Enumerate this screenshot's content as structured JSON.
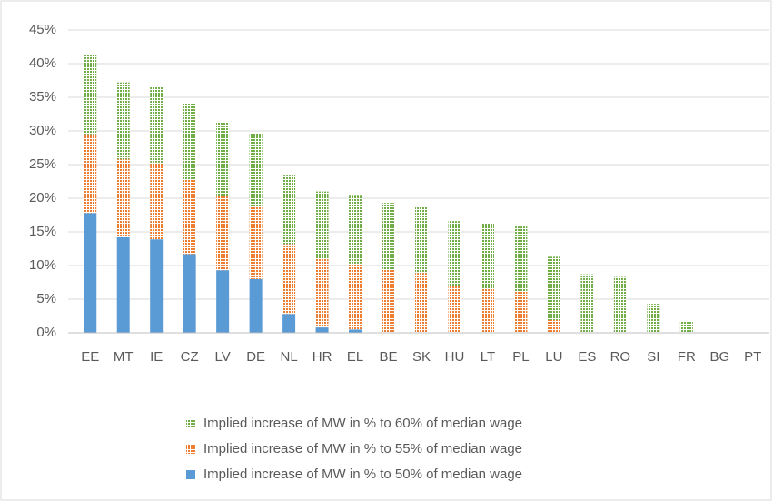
{
  "chart_data": {
    "type": "stacked_bar",
    "categories": [
      "EE",
      "MT",
      "IE",
      "CZ",
      "LV",
      "DE",
      "NL",
      "HR",
      "EL",
      "BE",
      "SK",
      "HU",
      "LT",
      "PL",
      "LU",
      "ES",
      "RO",
      "SI",
      "FR",
      "BG",
      "PT"
    ],
    "series": [
      {
        "name": "Implied increase of MW in % to 50% of median wage",
        "color": "#5b9bd5",
        "fill": "solid",
        "values": [
          17.8,
          14.2,
          13.9,
          11.7,
          9.3,
          8.0,
          2.8,
          0.8,
          0.5,
          0,
          0,
          0,
          0,
          0,
          0,
          0,
          0,
          0,
          0,
          0,
          0
        ]
      },
      {
        "name": "Implied increase of MW in % to 55% of median wage",
        "color": "#ed7d31",
        "fill": "dotted",
        "values": [
          11.7,
          11.6,
          11.4,
          11.1,
          11.0,
          10.9,
          10.4,
          10.2,
          9.8,
          9.4,
          8.9,
          7.0,
          6.6,
          6.1,
          1.9,
          0,
          0,
          0,
          0,
          0,
          0
        ]
      },
      {
        "name": "Implied increase of MW in % to 60% of median wage",
        "color": "#70ad47",
        "fill": "dotted",
        "values": [
          11.8,
          11.4,
          11.3,
          11.3,
          11.0,
          10.7,
          10.3,
          10.0,
          10.2,
          9.9,
          9.9,
          9.6,
          9.7,
          9.7,
          9.4,
          8.7,
          8.3,
          4.3,
          1.7,
          0,
          0
        ]
      }
    ],
    "ylim": [
      0,
      45
    ],
    "yticks": [
      {
        "value": 0,
        "label": "0%"
      },
      {
        "value": 5,
        "label": "5%"
      },
      {
        "value": 10,
        "label": "10%"
      },
      {
        "value": 15,
        "label": "15%"
      },
      {
        "value": 20,
        "label": "20%"
      },
      {
        "value": 25,
        "label": "25%"
      },
      {
        "value": 30,
        "label": "30%"
      },
      {
        "value": 35,
        "label": "35%"
      },
      {
        "value": 40,
        "label": "40%"
      },
      {
        "value": 45,
        "label": "45%"
      }
    ],
    "grid": true,
    "legend": "bottom"
  }
}
